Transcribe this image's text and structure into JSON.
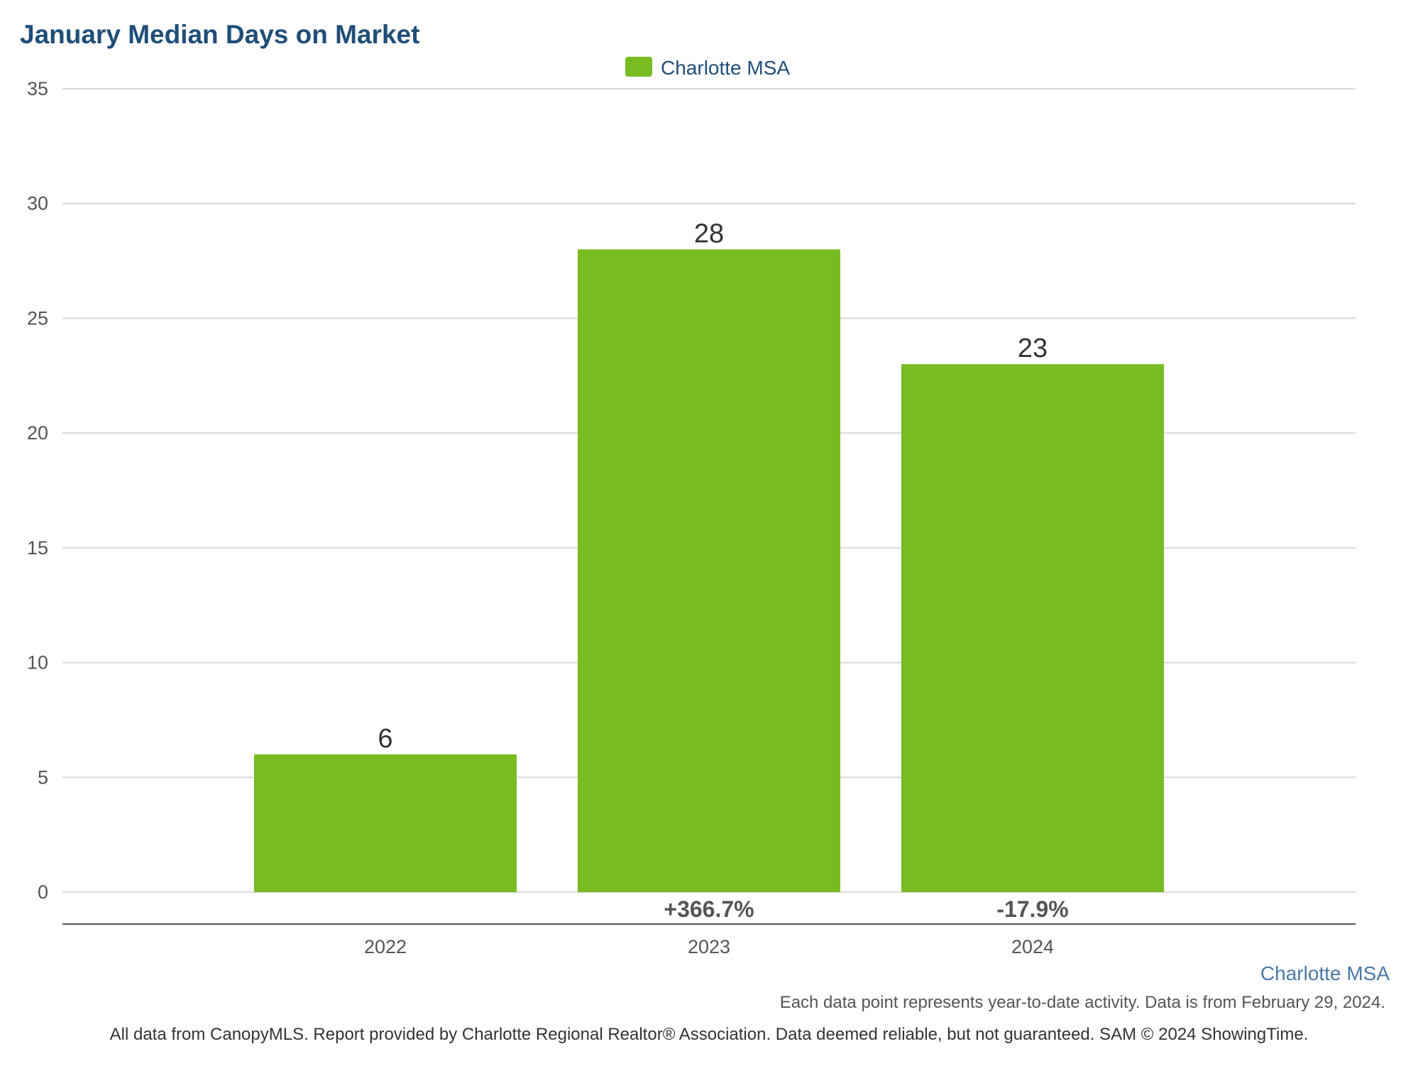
{
  "colors": {
    "title": "#1f4e79",
    "bar": "#78bc21",
    "grid": "#d9d9d9",
    "axis": "#555555",
    "series_note": "#4a7aa6"
  },
  "chart_data": {
    "type": "bar",
    "title": "January Median Days on Market",
    "categories": [
      "2022",
      "2023",
      "2024"
    ],
    "series": [
      {
        "name": "Charlotte MSA",
        "values": [
          6,
          28,
          23
        ]
      }
    ],
    "value_labels": [
      "6",
      "28",
      "23"
    ],
    "change_labels": [
      "",
      "+366.7%",
      "-17.9%"
    ],
    "yticks": [
      "0",
      "5",
      "10",
      "15",
      "20",
      "25",
      "30",
      "35"
    ],
    "ylim": [
      0,
      35
    ],
    "grid": true,
    "legend": "top-center",
    "xlabel": "",
    "ylabel": ""
  },
  "notes": {
    "series_note": "Charlotte MSA",
    "footnote": "Each data point represents year-to-date activity. Data is from February 29, 2024.",
    "credits": "All data from CanopyMLS. Report provided by Charlotte Regional Realtor® Association. Data deemed reliable, but not guaranteed. SAM © 2024 ShowingTime."
  }
}
